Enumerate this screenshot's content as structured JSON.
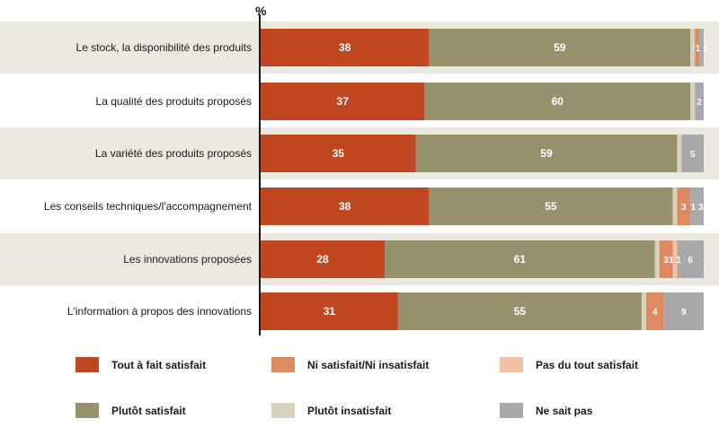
{
  "chart_data": {
    "type": "bar",
    "orientation": "horizontal",
    "stacked": true,
    "unit": "%",
    "categories": [
      "Le stock, la disponibilité des produits",
      "La qualité des produits proposés",
      "La variété des produits proposés",
      "Les conseils techniques/l'accompagnement",
      "Les innovations proposées",
      "L'information à propos des innovations"
    ],
    "series": [
      {
        "name": "Tout à fait satisfait",
        "color": "#c0471f",
        "values": [
          38,
          37,
          35,
          38,
          28,
          31
        ]
      },
      {
        "name": "Plutôt satisfait",
        "color": "#97916e",
        "values": [
          59,
          60,
          59,
          55,
          61,
          55
        ]
      },
      {
        "name": "Plutôt insatisfait",
        "color": "#d6d2bd",
        "values": [
          1,
          1,
          1,
          1,
          1,
          1
        ]
      },
      {
        "name": "Ni satisfait/Ni insatisfait",
        "color": "#de8a60",
        "values": [
          1,
          0,
          0,
          3,
          3,
          4
        ]
      },
      {
        "name": "Pas du tout satisfait",
        "color": "#f2c1a6",
        "values": [
          0,
          0,
          0,
          0,
          1,
          0
        ]
      },
      {
        "name": "Ne sait pas",
        "color": "#a9a8aa",
        "values": [
          1,
          2,
          5,
          3,
          6,
          9
        ]
      }
    ],
    "data_labels": [
      [
        "38",
        "59",
        "",
        "",
        "",
        "1 1"
      ],
      [
        "37",
        "60",
        "",
        "",
        "",
        "2"
      ],
      [
        "35",
        "59",
        "",
        "1",
        "",
        "5"
      ],
      [
        "38",
        "55",
        "",
        "3",
        "",
        "1 3"
      ],
      [
        "28",
        "61",
        "",
        "3",
        "1 1",
        "6"
      ],
      [
        "31",
        "55",
        "",
        "4",
        "1",
        "9"
      ]
    ],
    "xlim": [
      0,
      100
    ],
    "legend_position": "bottom",
    "legend_order": [
      "Tout à fait satisfait",
      "Ni satisfait/Ni insatisfait",
      "Pas du tout satisfait",
      "Plutôt satisfait",
      "Plutôt insatisfait",
      "Ne sait pas"
    ],
    "row_band_color": "#ebe9df"
  }
}
